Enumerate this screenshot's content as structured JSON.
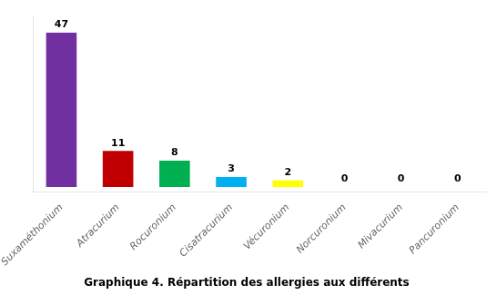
{
  "chart_data": {
    "type": "bar",
    "title": "Graphique 4. Répartition des allergies aux différents",
    "categories": [
      "Suxaméthonium",
      "Atracurium",
      "Rocuronium",
      "Cisatracurium",
      "Vécuronium",
      "Norcuronium",
      "Mivacurium",
      "Pancuronium"
    ],
    "values": [
      47,
      11,
      8,
      3,
      2,
      0,
      0,
      0
    ],
    "colors": [
      "#7030A0",
      "#C00000",
      "#00B050",
      "#00B0F0",
      "#FFFF00",
      "#4472C4",
      "#4472C4",
      "#4472C4"
    ],
    "ylim": [
      -1.5,
      52
    ],
    "grid": false,
    "data_labels": true,
    "tick_labels": "x"
  }
}
